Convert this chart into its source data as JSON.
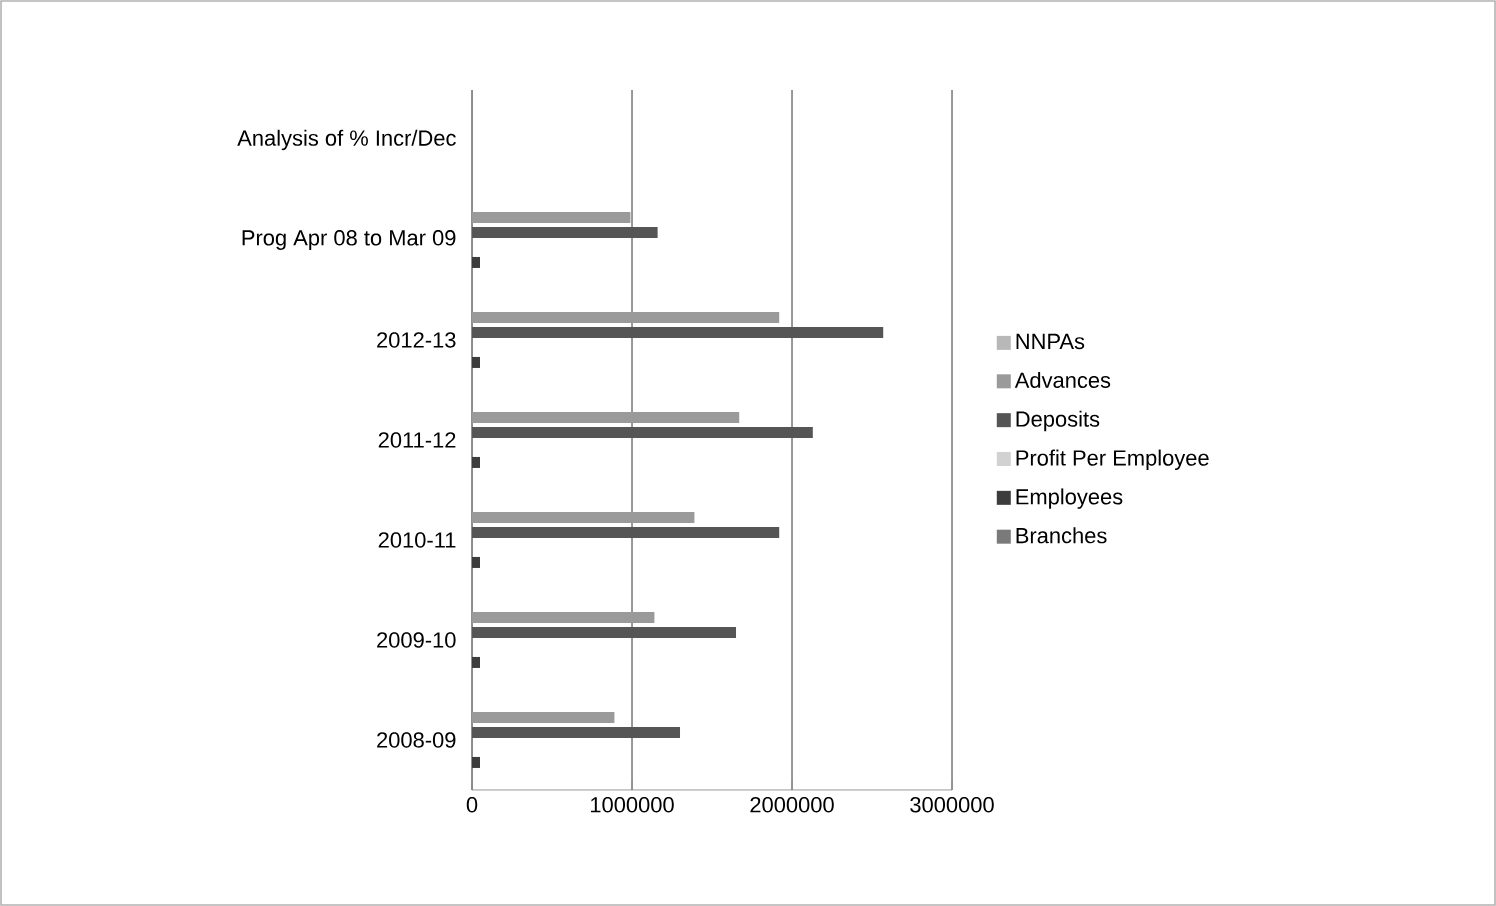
{
  "chart_data": {
    "type": "bar",
    "orientation": "horizontal",
    "categories": [
      "Analysis of % Incr/Dec",
      "Prog Apr 08 to Mar 09",
      "2012-13",
      "2011-12",
      "2010-11",
      "2009-10",
      "2008-09"
    ],
    "series": [
      {
        "name": "Branches",
        "color": "#7a7a7a",
        "values": [
          0,
          0,
          0,
          0,
          0,
          0,
          0
        ]
      },
      {
        "name": "Employees",
        "color": "#3c3c3c",
        "values": [
          0,
          50000,
          50000,
          50000,
          50000,
          50000,
          50000
        ]
      },
      {
        "name": "Profit Per Employee",
        "color": "#d2d2d2",
        "values": [
          0,
          0,
          0,
          0,
          0,
          0,
          0
        ]
      },
      {
        "name": "Deposits",
        "color": "#555555",
        "values": [
          0,
          1160000,
          2570000,
          2130000,
          1920000,
          1650000,
          1300000
        ]
      },
      {
        "name": "Advances",
        "color": "#9a9a9a",
        "values": [
          0,
          990000,
          1920000,
          1670000,
          1390000,
          1140000,
          890000
        ]
      },
      {
        "name": "NNPAs",
        "color": "#b8b8b8",
        "values": [
          0,
          0,
          0,
          0,
          0,
          0,
          0
        ]
      }
    ],
    "xlim": [
      0,
      3000000
    ],
    "xticks": [
      0,
      1000000,
      2000000,
      3000000
    ],
    "grid": "x",
    "legend": "right"
  }
}
